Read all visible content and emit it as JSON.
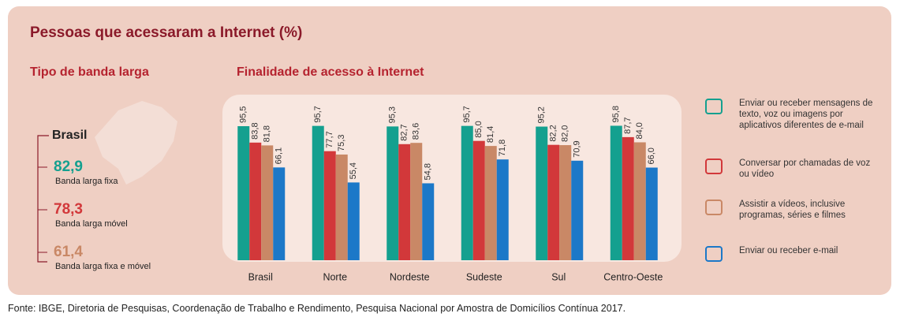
{
  "title": "Pessoas que acessaram a Internet (%)",
  "left_panel": {
    "subtitle": "Tipo de banda larga",
    "region": "Brasil",
    "items": [
      {
        "value": "82,9",
        "label": "Banda larga fixa",
        "color": "#14a08f"
      },
      {
        "value": "78,3",
        "label": "Banda larga móvel",
        "color": "#d2383a"
      },
      {
        "value": "61,4",
        "label": "Banda larga fixa e móvel",
        "color": "#c98866"
      }
    ]
  },
  "chart_data": {
    "type": "bar",
    "subtitle": "Finalidade de acesso à Internet",
    "categories": [
      "Brasil",
      "Norte",
      "Nordeste",
      "Sudeste",
      "Sul",
      "Centro-Oeste"
    ],
    "series": [
      {
        "name": "Enviar ou receber mensagens de texto, voz ou imagens por aplicativos diferentes de e-mail",
        "color": "#14a08f",
        "values": [
          95.5,
          95.7,
          95.3,
          95.7,
          95.2,
          95.8
        ],
        "value_labels": [
          "95,5",
          "95,7",
          "95,3",
          "95,7",
          "95,2",
          "95,8"
        ]
      },
      {
        "name": "Conversar por chamadas de voz ou vídeo",
        "color": "#d2383a",
        "values": [
          83.8,
          77.7,
          82.7,
          85.0,
          82.2,
          87.7
        ],
        "value_labels": [
          "83,8",
          "77,7",
          "82,7",
          "85,0",
          "82,2",
          "87,7"
        ]
      },
      {
        "name": "Assistir a vídeos, inclusive programas, séries e filmes",
        "color": "#c98866",
        "values": [
          81.8,
          75.3,
          83.6,
          81.4,
          82.0,
          84.0
        ],
        "value_labels": [
          "81,8",
          "75,3",
          "83,6",
          "81,4",
          "82,0",
          "84,0"
        ]
      },
      {
        "name": "Enviar ou receber e-mail",
        "color": "#1c78c8",
        "values": [
          66.1,
          55.4,
          54.8,
          71.8,
          70.9,
          66.0
        ],
        "value_labels": [
          "66,1",
          "55,4",
          "54,8",
          "71,8",
          "70,9",
          "66,0"
        ]
      }
    ]
  },
  "source": "Fonte: IBGE, Diretoria de Pesquisas, Coordenação de Trabalho e Rendimento, Pesquisa Nacional por Amostra de Domicílios Contínua 2017."
}
